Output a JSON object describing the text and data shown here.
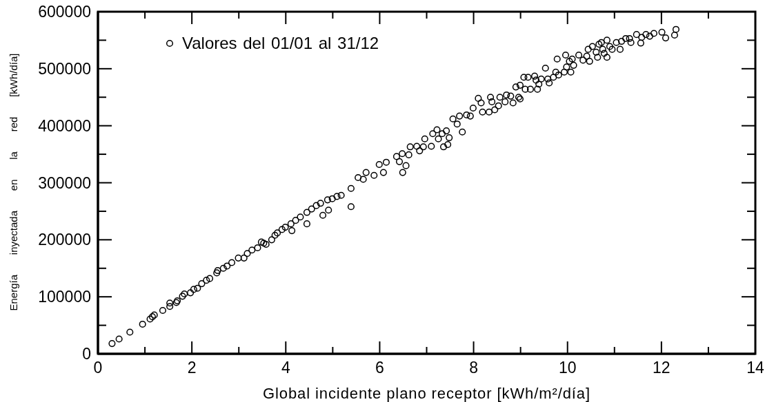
{
  "chart_data": {
    "type": "scatter",
    "xlabel": "Global incidente plano receptor [kWh/m²/día]",
    "ylabel": "Energía inyectada en la red [kWh/día]",
    "xlim": [
      0,
      14
    ],
    "xticks": [
      0,
      {
        "value": 1,
        "label": null
      },
      2,
      {
        "value": 3,
        "label": null
      },
      4,
      {
        "value": 5,
        "label": null
      },
      6,
      {
        "value": 7,
        "label": null
      },
      8,
      {
        "value": 9,
        "label": null
      },
      10,
      {
        "value": 11,
        "label": null
      },
      12,
      {
        "value": 13,
        "label": null
      },
      14
    ],
    "ylim": [
      0,
      600000
    ],
    "yticks": [
      0,
      {
        "value": 50000,
        "label": null
      },
      100000,
      {
        "value": 150000,
        "label": null
      },
      200000,
      {
        "value": 250000,
        "label": null
      },
      300000,
      {
        "value": 350000,
        "label": null
      },
      400000,
      {
        "value": 450000,
        "label": null
      },
      500000,
      {
        "value": 550000,
        "label": null
      },
      600000
    ],
    "legend": "top left",
    "marker": "circle",
    "x": [
      0.3,
      0.45,
      0.68,
      0.95,
      1.11,
      1.16,
      1.2,
      1.38,
      1.53,
      1.53,
      1.67,
      1.69,
      1.8,
      1.84,
      1.97,
      2.04,
      2.12,
      2.21,
      2.31,
      2.38,
      2.53,
      2.55,
      2.67,
      2.75,
      2.85,
      2.99,
      3.11,
      3.18,
      3.28,
      3.4,
      3.48,
      3.53,
      3.58,
      3.7,
      3.77,
      3.82,
      3.92,
      3.99,
      4.11,
      4.13,
      4.21,
      4.31,
      4.45,
      4.45,
      4.55,
      4.65,
      4.74,
      4.79,
      4.89,
      4.91,
      4.99,
      5.09,
      5.18,
      5.39,
      5.39,
      5.54,
      5.65,
      5.71,
      5.88,
      5.99,
      6.08,
      6.14,
      6.36,
      6.42,
      6.48,
      6.49,
      6.56,
      6.62,
      6.65,
      6.79,
      6.85,
      6.93,
      6.96,
      7.1,
      7.13,
      7.22,
      7.25,
      7.33,
      7.36,
      7.42,
      7.45,
      7.48,
      7.56,
      7.65,
      7.7,
      7.76,
      7.85,
      7.93,
      7.99,
      8.1,
      8.16,
      8.19,
      8.33,
      8.36,
      8.39,
      8.45,
      8.53,
      8.56,
      8.67,
      8.7,
      8.79,
      8.84,
      8.9,
      8.96,
      8.99,
      8.99,
      9.07,
      9.1,
      9.16,
      9.21,
      9.3,
      9.33,
      9.36,
      9.39,
      9.44,
      9.53,
      9.58,
      9.61,
      9.7,
      9.75,
      9.78,
      9.81,
      9.93,
      9.96,
      9.98,
      10.04,
      10.07,
      10.1,
      10.13,
      10.24,
      10.33,
      10.41,
      10.44,
      10.47,
      10.53,
      10.61,
      10.64,
      10.67,
      10.72,
      10.75,
      10.78,
      10.84,
      10.84,
      10.9,
      10.95,
      11.04,
      11.12,
      11.15,
      11.24,
      11.32,
      11.35,
      11.47,
      11.56,
      11.58,
      11.67,
      11.75,
      11.84,
      12.01,
      12.09,
      12.28,
      12.31
    ],
    "series": [
      {
        "name": "Valores del 01/01 al 31/12",
        "color": "#000000",
        "values": [
          18000,
          26000,
          38000,
          52000,
          61000,
          65000,
          68000,
          76000,
          83000,
          89000,
          90000,
          93000,
          101000,
          105000,
          107000,
          113000,
          115000,
          123000,
          129000,
          132000,
          142000,
          146000,
          150000,
          154000,
          160000,
          168000,
          168000,
          176000,
          182000,
          186000,
          196000,
          194000,
          192000,
          200000,
          208000,
          212000,
          218000,
          222000,
          228000,
          216000,
          234000,
          240000,
          228000,
          248000,
          254000,
          260000,
          264000,
          243000,
          270000,
          252000,
          272000,
          276000,
          278000,
          290000,
          258000,
          309000,
          306000,
          318000,
          313000,
          332000,
          318000,
          336000,
          346000,
          337000,
          351000,
          318000,
          330000,
          349000,
          363000,
          364000,
          356000,
          363000,
          377000,
          364000,
          386000,
          393000,
          377000,
          386000,
          363000,
          391000,
          367000,
          379000,
          412000,
          403000,
          417000,
          389000,
          419000,
          417000,
          431000,
          448000,
          440000,
          424000,
          424000,
          450000,
          442000,
          428000,
          435000,
          450000,
          442000,
          454000,
          452000,
          440000,
          468000,
          450000,
          447000,
          471000,
          485000,
          464000,
          485000,
          464000,
          487000,
          480000,
          464000,
          473000,
          482000,
          501000,
          482000,
          475000,
          485000,
          494000,
          517000,
          489000,
          494000,
          524000,
          503000,
          513000,
          494000,
          517000,
          506000,
          524000,
          515000,
          522000,
          534000,
          513000,
          539000,
          529000,
          520000,
          543000,
          546000,
          534000,
          527000,
          550000,
          520000,
          539000,
          534000,
          546000,
          534000,
          548000,
          553000,
          553000,
          546000,
          560000,
          545000,
          555000,
          560000,
          557000,
          562000,
          564000,
          554000,
          559000,
          569000
        ]
      }
    ]
  }
}
